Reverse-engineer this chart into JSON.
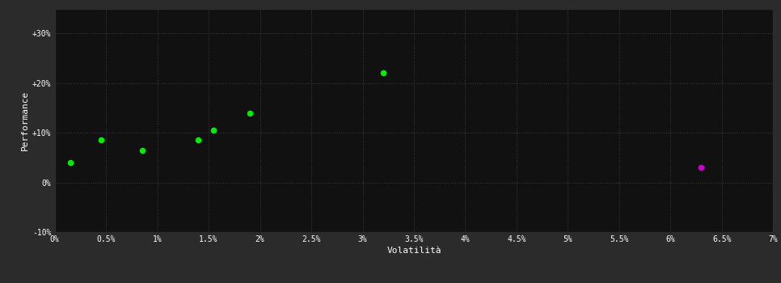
{
  "green_points": [
    [
      0.15,
      4.0
    ],
    [
      0.45,
      8.5
    ],
    [
      0.85,
      6.5
    ],
    [
      1.4,
      8.5
    ],
    [
      1.55,
      10.5
    ],
    [
      1.9,
      14.0
    ],
    [
      3.2,
      22.0
    ]
  ],
  "magenta_points": [
    [
      6.3,
      3.0
    ]
  ],
  "xlabel": "Volatilità",
  "ylabel": "Performance",
  "xlim": [
    0,
    7
  ],
  "ylim": [
    -10,
    35
  ],
  "xtick_labels": [
    "0%",
    "0.5%",
    "1%",
    "1.5%",
    "2%",
    "2.5%",
    "3%",
    "3.5%",
    "4%",
    "4.5%",
    "5%",
    "5.5%",
    "6%",
    "6.5%",
    "7%"
  ],
  "xtick_values": [
    0,
    0.5,
    1.0,
    1.5,
    2.0,
    2.5,
    3.0,
    3.5,
    4.0,
    4.5,
    5.0,
    5.5,
    6.0,
    6.5,
    7.0
  ],
  "ytick_labels": [
    "-10%",
    "0%",
    "+10%",
    "+20%",
    "+30%"
  ],
  "ytick_values": [
    -10,
    0,
    10,
    20,
    30
  ],
  "outer_bg_color": "#2b2b2b",
  "plot_bg_color": "#111111",
  "grid_color": "#444444",
  "text_color": "#ffffff",
  "green_color": "#00ee00",
  "magenta_color": "#cc00cc",
  "marker_size": 30
}
